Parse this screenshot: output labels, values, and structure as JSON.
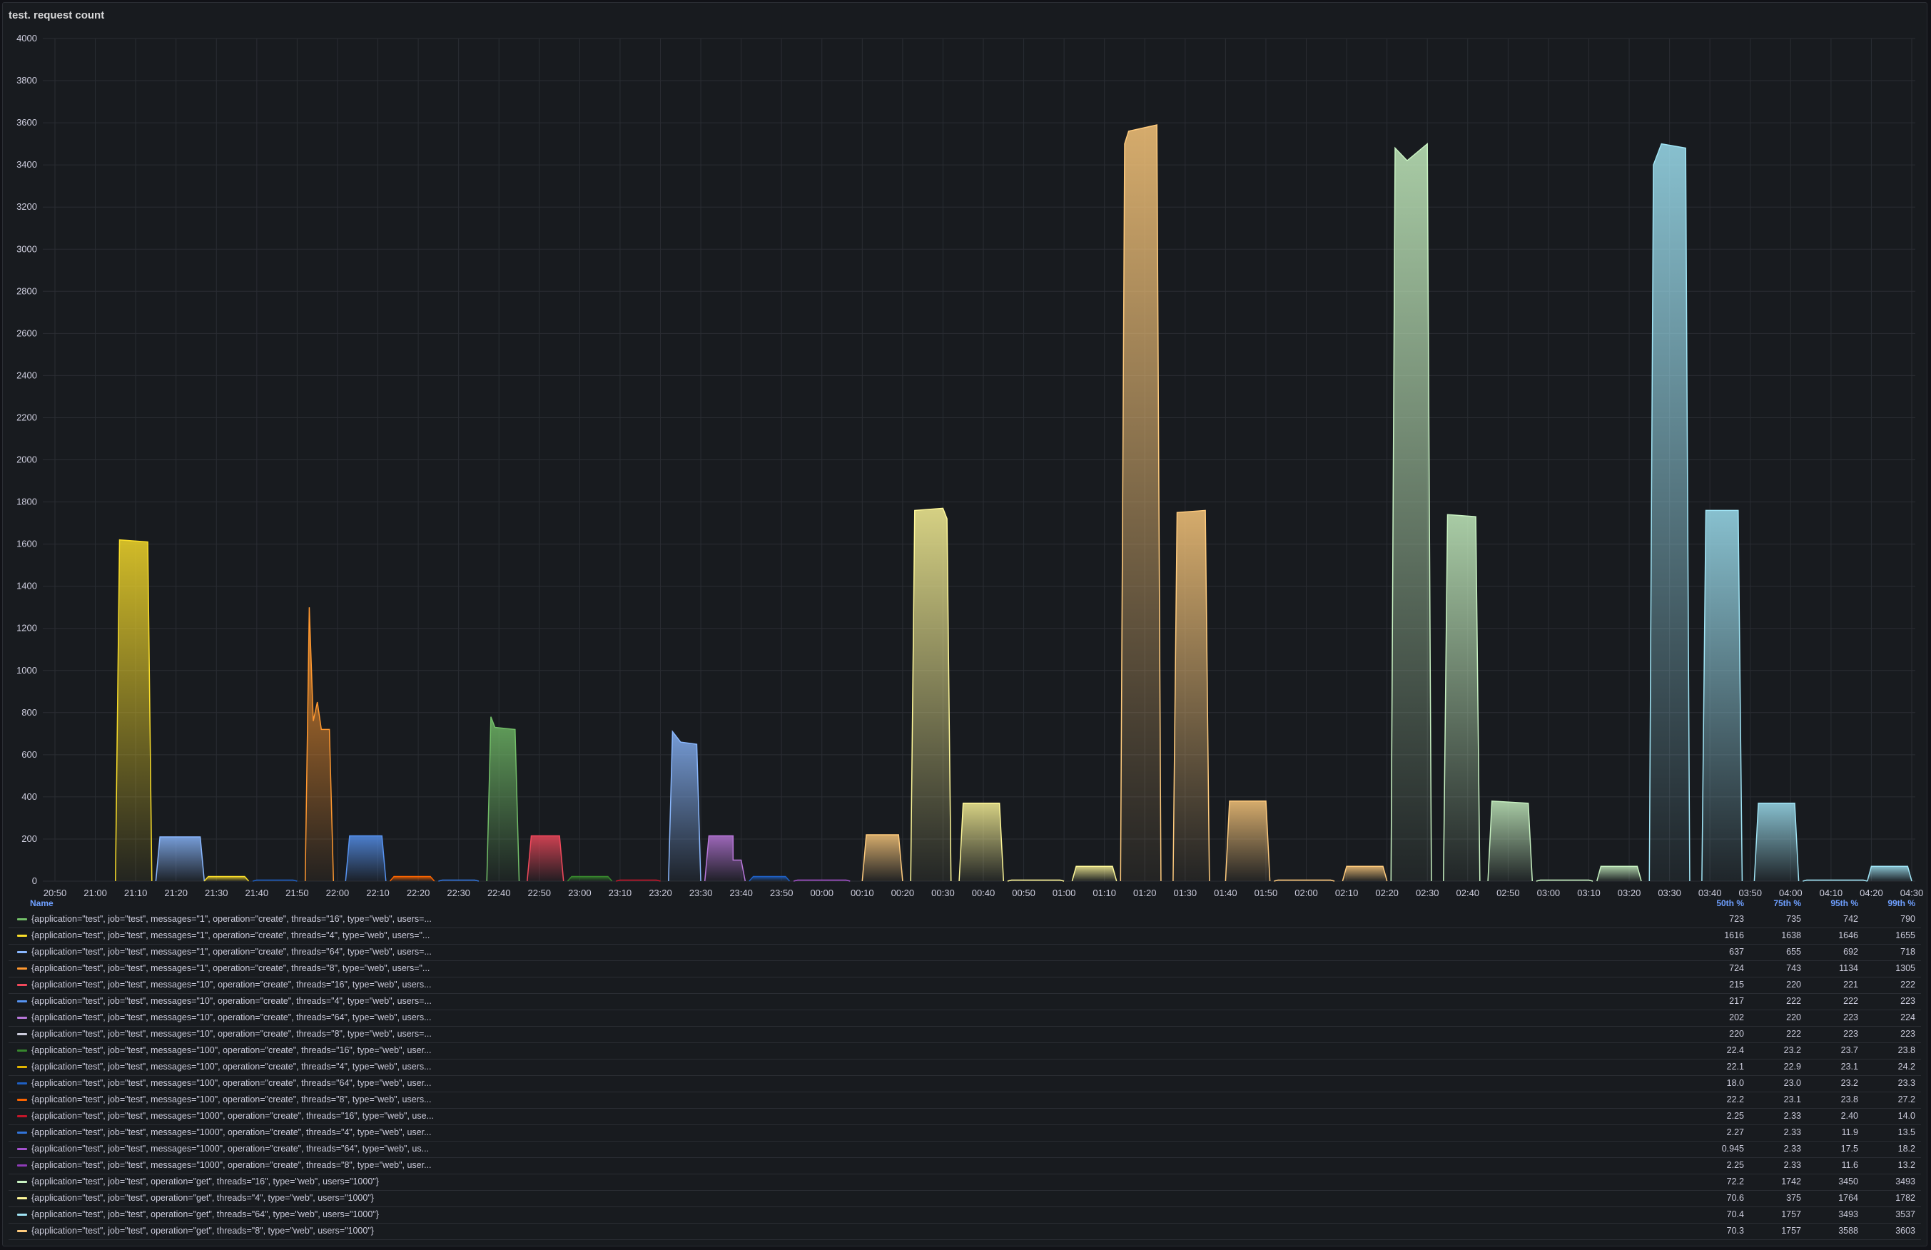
{
  "panel": {
    "title": "test. request count"
  },
  "legend": {
    "headers": {
      "name": "Name",
      "p50": "50th %",
      "p75": "75th %",
      "p95": "95th %",
      "p99": "99th %"
    },
    "rows": [
      {
        "color": "#73bf69",
        "label": "{application=\"test\", job=\"test\", messages=\"1\", operation=\"create\", threads=\"16\", type=\"web\", users=...",
        "p50": "723",
        "p75": "735",
        "p95": "742",
        "p99": "790"
      },
      {
        "color": "#fade2a",
        "label": "{application=\"test\", job=\"test\", messages=\"1\", operation=\"create\", threads=\"4\", type=\"web\", users=\"...",
        "p50": "1616",
        "p75": "1638",
        "p95": "1646",
        "p99": "1655"
      },
      {
        "color": "#8ab8ff",
        "label": "{application=\"test\", job=\"test\", messages=\"1\", operation=\"create\", threads=\"64\", type=\"web\", users=...",
        "p50": "637",
        "p75": "655",
        "p95": "692",
        "p99": "718"
      },
      {
        "color": "#ff9830",
        "label": "{application=\"test\", job=\"test\", messages=\"1\", operation=\"create\", threads=\"8\", type=\"web\", users=\"...",
        "p50": "724",
        "p75": "743",
        "p95": "1134",
        "p99": "1305"
      },
      {
        "color": "#f2495c",
        "label": "{application=\"test\", job=\"test\", messages=\"10\", operation=\"create\", threads=\"16\", type=\"web\", users...",
        "p50": "215",
        "p75": "220",
        "p95": "221",
        "p99": "222"
      },
      {
        "color": "#5794f2",
        "label": "{application=\"test\", job=\"test\", messages=\"10\", operation=\"create\", threads=\"4\", type=\"web\", users=...",
        "p50": "217",
        "p75": "222",
        "p95": "222",
        "p99": "223"
      },
      {
        "color": "#b877d9",
        "label": "{application=\"test\", job=\"test\", messages=\"10\", operation=\"create\", threads=\"64\", type=\"web\", users...",
        "p50": "202",
        "p75": "220",
        "p95": "223",
        "p99": "224"
      },
      {
        "color": "#ccccdc",
        "label": "{application=\"test\", job=\"test\", messages=\"10\", operation=\"create\", threads=\"8\", type=\"web\", users=...",
        "p50": "220",
        "p75": "222",
        "p95": "223",
        "p99": "223"
      },
      {
        "color": "#37872d",
        "label": "{application=\"test\", job=\"test\", messages=\"100\", operation=\"create\", threads=\"16\", type=\"web\", user...",
        "p50": "22.4",
        "p75": "23.2",
        "p95": "23.7",
        "p99": "23.8"
      },
      {
        "color": "#e0b400",
        "label": "{application=\"test\", job=\"test\", messages=\"100\", operation=\"create\", threads=\"4\", type=\"web\", users...",
        "p50": "22.1",
        "p75": "22.9",
        "p95": "23.1",
        "p99": "24.2"
      },
      {
        "color": "#1f60c4",
        "label": "{application=\"test\", job=\"test\", messages=\"100\", operation=\"create\", threads=\"64\", type=\"web\", user...",
        "p50": "18.0",
        "p75": "23.0",
        "p95": "23.2",
        "p99": "23.3"
      },
      {
        "color": "#fa6400",
        "label": "{application=\"test\", job=\"test\", messages=\"100\", operation=\"create\", threads=\"8\", type=\"web\", users...",
        "p50": "22.2",
        "p75": "23.1",
        "p95": "23.8",
        "p99": "27.2"
      },
      {
        "color": "#c4162a",
        "label": "{application=\"test\", job=\"test\", messages=\"1000\", operation=\"create\", threads=\"16\", type=\"web\", use...",
        "p50": "2.25",
        "p75": "2.33",
        "p95": "2.40",
        "p99": "14.0"
      },
      {
        "color": "#3274d9",
        "label": "{application=\"test\", job=\"test\", messages=\"1000\", operation=\"create\", threads=\"4\", type=\"web\", user...",
        "p50": "2.27",
        "p75": "2.33",
        "p95": "11.9",
        "p99": "13.5"
      },
      {
        "color": "#a352cc",
        "label": "{application=\"test\", job=\"test\", messages=\"1000\", operation=\"create\", threads=\"64\", type=\"web\", us...",
        "p50": "0.945",
        "p75": "2.33",
        "p95": "17.5",
        "p99": "18.2"
      },
      {
        "color": "#8f3bb8",
        "label": "{application=\"test\", job=\"test\", messages=\"1000\", operation=\"create\", threads=\"8\", type=\"web\", user...",
        "p50": "2.25",
        "p75": "2.33",
        "p95": "11.6",
        "p99": "13.2"
      },
      {
        "color": "#c8f2c2",
        "label": "{application=\"test\", job=\"test\", operation=\"get\", threads=\"16\", type=\"web\", users=\"1000\"}",
        "p50": "72.2",
        "p75": "1742",
        "p95": "3450",
        "p99": "3493"
      },
      {
        "color": "#fff899",
        "label": "{application=\"test\", job=\"test\", operation=\"get\", threads=\"4\", type=\"web\", users=\"1000\"}",
        "p50": "70.6",
        "p75": "375",
        "p95": "1764",
        "p99": "1782"
      },
      {
        "color": "#a0e4f5",
        "label": "{application=\"test\", job=\"test\", operation=\"get\", threads=\"64\", type=\"web\", users=\"1000\"}",
        "p50": "70.4",
        "p75": "1757",
        "p95": "3493",
        "p99": "3537"
      },
      {
        "color": "#ffcb7d",
        "label": "{application=\"test\", job=\"test\", operation=\"get\", threads=\"8\", type=\"web\", users=\"1000\"}",
        "p50": "70.3",
        "p75": "1757",
        "p95": "3588",
        "p99": "3603"
      }
    ]
  },
  "chart_data": {
    "type": "area",
    "title": "test. request count",
    "ylim": [
      0,
      4000
    ],
    "yticks": [
      0,
      200,
      400,
      600,
      800,
      1000,
      1200,
      1400,
      1600,
      1800,
      2000,
      2200,
      2400,
      2600,
      2800,
      3000,
      3200,
      3400,
      3600,
      3800,
      4000
    ],
    "xticks": [
      "20:50",
      "21:00",
      "21:10",
      "21:20",
      "21:30",
      "21:40",
      "21:50",
      "22:00",
      "22:10",
      "22:20",
      "22:30",
      "22:40",
      "22:50",
      "23:00",
      "23:10",
      "23:20",
      "23:30",
      "23:40",
      "23:50",
      "00:00",
      "00:10",
      "00:20",
      "00:30",
      "00:40",
      "00:50",
      "01:00",
      "01:10",
      "01:20",
      "01:30",
      "01:40",
      "01:50",
      "02:00",
      "02:10",
      "02:20",
      "02:30",
      "02:40",
      "02:50",
      "03:00",
      "03:10",
      "03:20",
      "03:30",
      "03:40",
      "03:50",
      "04:00",
      "04:10",
      "04:20",
      "04:30"
    ],
    "grid": true,
    "legend": "bottom-table",
    "series": [
      {
        "color": "#fade2a",
        "points": [
          [
            "21:05",
            0
          ],
          [
            "21:06",
            1620
          ],
          [
            "21:13",
            1610
          ],
          [
            "21:14",
            0
          ]
        ]
      },
      {
        "color": "#8ab8ff",
        "points": [
          [
            "21:15",
            0
          ],
          [
            "21:16",
            210
          ],
          [
            "21:26",
            210
          ],
          [
            "21:27",
            0
          ]
        ]
      },
      {
        "color": "#fade2a",
        "points": [
          [
            "21:27",
            0
          ],
          [
            "21:28",
            22
          ],
          [
            "21:37",
            22
          ],
          [
            "21:38",
            0
          ]
        ]
      },
      {
        "color": "#1f60c4",
        "points": [
          [
            "21:39",
            0
          ],
          [
            "21:40",
            5
          ],
          [
            "21:49",
            5
          ],
          [
            "21:50",
            0
          ]
        ]
      },
      {
        "color": "#ff9830",
        "points": [
          [
            "21:52",
            0
          ],
          [
            "21:53",
            1300
          ],
          [
            "21:54",
            760
          ],
          [
            "21:55",
            850
          ],
          [
            "21:56",
            720
          ],
          [
            "21:58",
            720
          ],
          [
            "21:59",
            0
          ]
        ]
      },
      {
        "color": "#5794f2",
        "points": [
          [
            "22:02",
            0
          ],
          [
            "22:03",
            215
          ],
          [
            "22:11",
            215
          ],
          [
            "22:12",
            0
          ]
        ]
      },
      {
        "color": "#fa6400",
        "points": [
          [
            "22:13",
            0
          ],
          [
            "22:14",
            22
          ],
          [
            "22:23",
            22
          ],
          [
            "22:24",
            0
          ]
        ]
      },
      {
        "color": "#3274d9",
        "points": [
          [
            "22:25",
            0
          ],
          [
            "22:26",
            5
          ],
          [
            "22:34",
            5
          ],
          [
            "22:35",
            0
          ]
        ]
      },
      {
        "color": "#73bf69",
        "points": [
          [
            "22:37",
            0
          ],
          [
            "22:38",
            780
          ],
          [
            "22:39",
            730
          ],
          [
            "22:44",
            720
          ],
          [
            "22:45",
            0
          ]
        ]
      },
      {
        "color": "#f2495c",
        "points": [
          [
            "22:47",
            0
          ],
          [
            "22:48",
            215
          ],
          [
            "22:55",
            215
          ],
          [
            "22:56",
            0
          ]
        ]
      },
      {
        "color": "#37872d",
        "points": [
          [
            "22:57",
            0
          ],
          [
            "22:58",
            22
          ],
          [
            "23:07",
            22
          ],
          [
            "23:08",
            0
          ]
        ]
      },
      {
        "color": "#c4162a",
        "points": [
          [
            "23:09",
            0
          ],
          [
            "23:10",
            5
          ],
          [
            "23:19",
            5
          ],
          [
            "23:20",
            0
          ]
        ]
      },
      {
        "color": "#8ab8ff",
        "points": [
          [
            "23:22",
            0
          ],
          [
            "23:23",
            710
          ],
          [
            "23:25",
            660
          ],
          [
            "23:29",
            650
          ],
          [
            "23:30",
            0
          ]
        ]
      },
      {
        "color": "#b877d9",
        "points": [
          [
            "23:31",
            0
          ],
          [
            "23:32",
            215
          ],
          [
            "23:38",
            215
          ],
          [
            "23:38",
            100
          ],
          [
            "23:40",
            100
          ],
          [
            "23:41",
            0
          ]
        ]
      },
      {
        "color": "#1f60c4",
        "points": [
          [
            "23:42",
            0
          ],
          [
            "23:43",
            22
          ],
          [
            "23:51",
            22
          ],
          [
            "23:52",
            0
          ]
        ]
      },
      {
        "color": "#a352cc",
        "points": [
          [
            "23:53",
            0
          ],
          [
            "23:54",
            5
          ],
          [
            "00:06",
            5
          ],
          [
            "00:07",
            0
          ]
        ]
      },
      {
        "color": "#ffcb7d",
        "points": [
          [
            "00:10",
            0
          ],
          [
            "00:11",
            220
          ],
          [
            "00:19",
            220
          ],
          [
            "00:20",
            0
          ]
        ]
      },
      {
        "color": "#fff899",
        "points": [
          [
            "00:22",
            0
          ],
          [
            "00:23",
            1760
          ],
          [
            "00:30",
            1770
          ],
          [
            "00:31",
            1720
          ],
          [
            "00:32",
            0
          ]
        ]
      },
      {
        "color": "#fff899",
        "points": [
          [
            "00:34",
            0
          ],
          [
            "00:35",
            370
          ],
          [
            "00:44",
            370
          ],
          [
            "00:45",
            0
          ]
        ]
      },
      {
        "color": "#fff899",
        "points": [
          [
            "00:46",
            0
          ],
          [
            "00:47",
            5
          ],
          [
            "00:59",
            5
          ],
          [
            "01:00",
            0
          ]
        ]
      },
      {
        "color": "#fff899",
        "points": [
          [
            "01:02",
            0
          ],
          [
            "01:03",
            70
          ],
          [
            "01:12",
            70
          ],
          [
            "01:13",
            0
          ]
        ]
      },
      {
        "color": "#ffcb7d",
        "points": [
          [
            "01:14",
            0
          ],
          [
            "01:15",
            3500
          ],
          [
            "01:16",
            3560
          ],
          [
            "01:23",
            3590
          ],
          [
            "01:24",
            0
          ]
        ]
      },
      {
        "color": "#ffcb7d",
        "points": [
          [
            "01:27",
            0
          ],
          [
            "01:28",
            1750
          ],
          [
            "01:35",
            1760
          ],
          [
            "01:36",
            0
          ]
        ]
      },
      {
        "color": "#ffcb7d",
        "points": [
          [
            "01:40",
            0
          ],
          [
            "01:41",
            380
          ],
          [
            "01:50",
            380
          ],
          [
            "01:51",
            0
          ]
        ]
      },
      {
        "color": "#ffcb7d",
        "points": [
          [
            "01:52",
            0
          ],
          [
            "01:53",
            5
          ],
          [
            "02:06",
            5
          ],
          [
            "02:07",
            0
          ]
        ]
      },
      {
        "color": "#ffcb7d",
        "points": [
          [
            "02:09",
            0
          ],
          [
            "02:10",
            70
          ],
          [
            "02:19",
            70
          ],
          [
            "02:20",
            0
          ]
        ]
      },
      {
        "color": "#c8f2c2",
        "points": [
          [
            "02:21",
            0
          ],
          [
            "02:22",
            3480
          ],
          [
            "02:25",
            3420
          ],
          [
            "02:30",
            3500
          ],
          [
            "02:31",
            0
          ]
        ]
      },
      {
        "color": "#c8f2c2",
        "points": [
          [
            "02:34",
            0
          ],
          [
            "02:35",
            1740
          ],
          [
            "02:42",
            1730
          ],
          [
            "02:43",
            0
          ]
        ]
      },
      {
        "color": "#c8f2c2",
        "points": [
          [
            "02:45",
            0
          ],
          [
            "02:46",
            380
          ],
          [
            "02:55",
            370
          ],
          [
            "02:56",
            0
          ]
        ]
      },
      {
        "color": "#c8f2c2",
        "points": [
          [
            "02:57",
            0
          ],
          [
            "02:58",
            5
          ],
          [
            "03:10",
            5
          ],
          [
            "03:11",
            0
          ]
        ]
      },
      {
        "color": "#c8f2c2",
        "points": [
          [
            "03:12",
            0
          ],
          [
            "03:13",
            70
          ],
          [
            "03:22",
            70
          ],
          [
            "03:23",
            0
          ]
        ]
      },
      {
        "color": "#a0e4f5",
        "points": [
          [
            "03:25",
            0
          ],
          [
            "03:26",
            3400
          ],
          [
            "03:28",
            3500
          ],
          [
            "03:34",
            3480
          ],
          [
            "03:35",
            0
          ]
        ]
      },
      {
        "color": "#a0e4f5",
        "points": [
          [
            "03:38",
            0
          ],
          [
            "03:39",
            1760
          ],
          [
            "03:47",
            1760
          ],
          [
            "03:48",
            0
          ]
        ]
      },
      {
        "color": "#a0e4f5",
        "points": [
          [
            "03:51",
            0
          ],
          [
            "03:52",
            370
          ],
          [
            "04:01",
            370
          ],
          [
            "04:02",
            0
          ]
        ]
      },
      {
        "color": "#a0e4f5",
        "points": [
          [
            "04:03",
            0
          ],
          [
            "04:04",
            5
          ],
          [
            "04:18",
            5
          ],
          [
            "04:19",
            0
          ]
        ]
      },
      {
        "color": "#a0e4f5",
        "points": [
          [
            "04:19",
            0
          ],
          [
            "04:20",
            70
          ],
          [
            "04:29",
            70
          ],
          [
            "04:30",
            0
          ]
        ]
      }
    ]
  }
}
